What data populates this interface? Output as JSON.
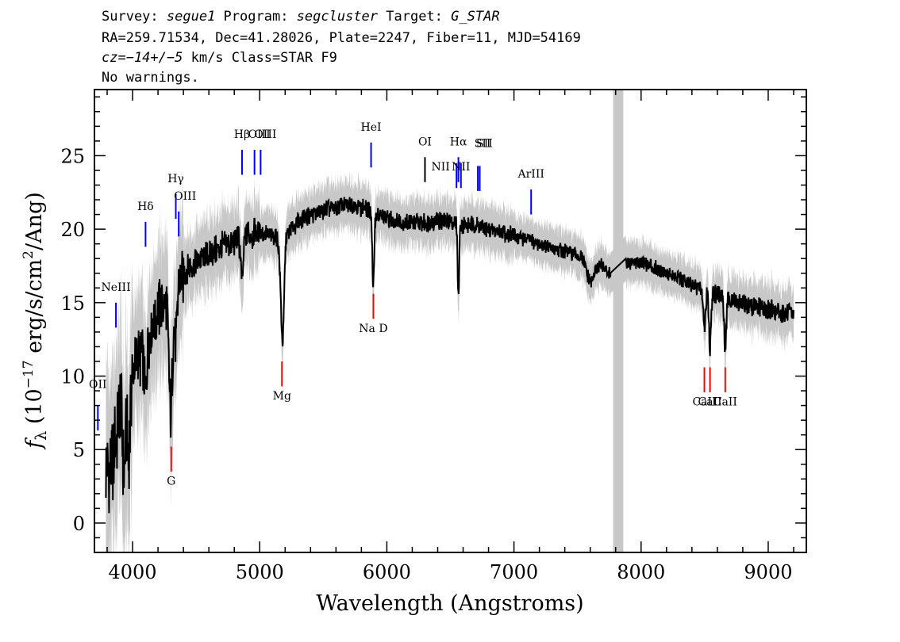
{
  "header": {
    "line1": {
      "survey_label": "Survey: ",
      "survey": "segue1",
      "program_label": " Program: ",
      "program": "segcluster",
      "target_label": " Target: ",
      "target": "G_STAR"
    },
    "line2": "RA=259.71534, Dec=41.28026, Plate=2247, Fiber=11, MJD=54169",
    "line3": {
      "cz": "cz=−14+/−5",
      "rest": " km/s Class=STAR F9"
    },
    "line4": "No warnings."
  },
  "chart_data": {
    "type": "line",
    "xlabel": "Wavelength (Angstroms)",
    "ylabel": "fλ (10⁻¹⁷ erg/s/cm²/Ang)",
    "xlim": [
      3700,
      9300
    ],
    "ylim": [
      -2,
      29.5
    ],
    "x_ticks": [
      4000,
      5000,
      6000,
      7000,
      8000,
      9000
    ],
    "y_ticks": [
      0,
      5,
      10,
      15,
      20,
      25
    ],
    "masked_region": [
      7780,
      7860
    ],
    "colors": {
      "flux": "#000000",
      "error_band": "#c8c8c8",
      "mask": "#c8c8c8",
      "emission": "#0000ff",
      "absorption": "#ff0000",
      "sky": "#000000"
    },
    "continuum": {
      "x": [
        3760,
        3850,
        3900,
        4000,
        4100,
        4200,
        4300,
        4400,
        4500,
        4600,
        4700,
        4800,
        4900,
        5000,
        5100,
        5200,
        5300,
        5400,
        5500,
        5600,
        5700,
        5800,
        5900,
        6000,
        6100,
        6200,
        6300,
        6400,
        6500,
        6600,
        6700,
        6800,
        6900,
        7000,
        7100,
        7200,
        7300,
        7400,
        7500,
        7600,
        7700,
        7780,
        7860,
        7900,
        8000,
        8200,
        8400,
        8600,
        8800,
        9000,
        9100,
        9200
      ],
      "y": [
        3.0,
        4.5,
        8.0,
        10.5,
        12.0,
        14.5,
        15.5,
        17.0,
        17.8,
        18.3,
        18.8,
        19.2,
        19.6,
        19.8,
        19.5,
        19.5,
        20.5,
        21.0,
        21.3,
        21.5,
        21.7,
        21.5,
        21.0,
        20.7,
        20.5,
        20.5,
        20.4,
        20.6,
        20.5,
        20.3,
        20.3,
        20.0,
        19.8,
        19.5,
        19.3,
        19.0,
        18.7,
        18.5,
        18.2,
        17.9,
        17.5,
        16.5,
        17.5,
        17.7,
        17.8,
        17.0,
        16.2,
        15.5,
        15.0,
        14.5,
        14.3,
        14.2
      ]
    },
    "absorption_features": [
      {
        "center": 3934,
        "depth": 5.0,
        "width": 12
      },
      {
        "center": 3969,
        "depth": 5.0,
        "width": 12
      },
      {
        "center": 4101,
        "depth": 3.0,
        "width": 12
      },
      {
        "center": 4300,
        "depth": 8.0,
        "width": 14
      },
      {
        "center": 4340,
        "depth": 4.0,
        "width": 10
      },
      {
        "center": 4861,
        "depth": 3.0,
        "width": 10
      },
      {
        "center": 5172,
        "depth": 3.5,
        "width": 14
      },
      {
        "center": 5183,
        "depth": 4.5,
        "width": 10
      },
      {
        "center": 5890,
        "depth": 3.0,
        "width": 6
      },
      {
        "center": 5896,
        "depth": 3.0,
        "width": 6
      },
      {
        "center": 6563,
        "depth": 5.0,
        "width": 6
      },
      {
        "center": 7600,
        "depth": 1.5,
        "width": 30
      },
      {
        "center": 8498,
        "depth": 2.5,
        "width": 8
      },
      {
        "center": 8542,
        "depth": 3.8,
        "width": 8
      },
      {
        "center": 8662,
        "depth": 3.5,
        "width": 8
      }
    ],
    "emission_lines": [
      {
        "label": "OII",
        "x": 3727,
        "y_bottom": 6.3,
        "y_top": 8.0,
        "label_y": 9.2,
        "label_dx": 0
      },
      {
        "label": "NeIII",
        "x": 3869,
        "y_bottom": 13.3,
        "y_top": 15.0,
        "label_y": 15.8,
        "label_dx": 0
      },
      {
        "label": "Hδ",
        "x": 4102,
        "y_bottom": 18.8,
        "y_top": 20.5,
        "label_y": 21.3,
        "label_dx": 0
      },
      {
        "label": "Hγ",
        "x": 4340,
        "y_bottom": 20.7,
        "y_top": 22.4,
        "label_y": 23.2,
        "label_dx": 0
      },
      {
        "label": "OIII",
        "x": 4363,
        "y_bottom": 19.5,
        "y_top": 21.2,
        "label_y": 22.0,
        "label_dx": 8
      },
      {
        "label": "Hβ",
        "x": 4861,
        "y_bottom": 23.7,
        "y_top": 25.4,
        "label_y": 26.2,
        "label_dx": 0
      },
      {
        "label": "OIII",
        "x": 4959,
        "y_bottom": 23.7,
        "y_top": 25.4,
        "label_y": 26.2,
        "label_dx": 6
      },
      {
        "label": "OIII",
        "x": 5007,
        "y_bottom": 23.7,
        "y_top": 25.4,
        "label_y": 26.2,
        "label_dx": 6
      },
      {
        "label": "HeI",
        "x": 5876,
        "y_bottom": 24.2,
        "y_top": 25.9,
        "label_y": 26.7,
        "label_dx": 0
      },
      {
        "label": "NII",
        "x": 6548,
        "y_bottom": 22.8,
        "y_top": 24.5,
        "label_y": 24.0,
        "label_dx": -20
      },
      {
        "label": "Hα",
        "x": 6563,
        "y_bottom": 23.2,
        "y_top": 24.9,
        "label_y": 25.7,
        "label_dx": 0
      },
      {
        "label": "NII",
        "x": 6583,
        "y_bottom": 22.8,
        "y_top": 24.5,
        "label_y": 24.0,
        "label_dx": 0
      },
      {
        "label": "SII",
        "x": 6716,
        "y_bottom": 22.6,
        "y_top": 24.3,
        "label_y": 25.6,
        "label_dx": 6
      },
      {
        "label": "SII",
        "x": 6731,
        "y_bottom": 22.6,
        "y_top": 24.3,
        "label_y": 25.6,
        "label_dx": 6
      },
      {
        "label": "ArIII",
        "x": 7135,
        "y_bottom": 21.0,
        "y_top": 22.7,
        "label_y": 23.5,
        "label_dx": 0
      }
    ],
    "sky_lines": [
      {
        "label": "OI",
        "x": 6300,
        "y_bottom": 23.2,
        "y_top": 24.9,
        "label_y": 25.7
      }
    ],
    "absorption_lines": [
      {
        "label": "G",
        "x": 4304,
        "y_top": 5.2,
        "y_bottom": 3.5,
        "label_y": 2.6,
        "label_dx": 0
      },
      {
        "label": "Mg",
        "x": 5175,
        "y_top": 11.0,
        "y_bottom": 9.3,
        "label_y": 8.4,
        "label_dx": 0
      },
      {
        "label": "Na D",
        "x": 5894,
        "y_top": 15.6,
        "y_bottom": 13.9,
        "label_y": 13.0,
        "label_dx": 0
      },
      {
        "label": "CaII",
        "x": 8498,
        "y_top": 10.6,
        "y_bottom": 8.9,
        "label_y": 8.0,
        "label_dx": 0
      },
      {
        "label": "CaII",
        "x": 8542,
        "y_top": 10.6,
        "y_bottom": 8.9,
        "label_y": 8.0,
        "label_dx": 0
      },
      {
        "label": "CaII",
        "x": 8662,
        "y_top": 10.6,
        "y_bottom": 8.9,
        "label_y": 8.0,
        "label_dx": 0
      }
    ]
  }
}
